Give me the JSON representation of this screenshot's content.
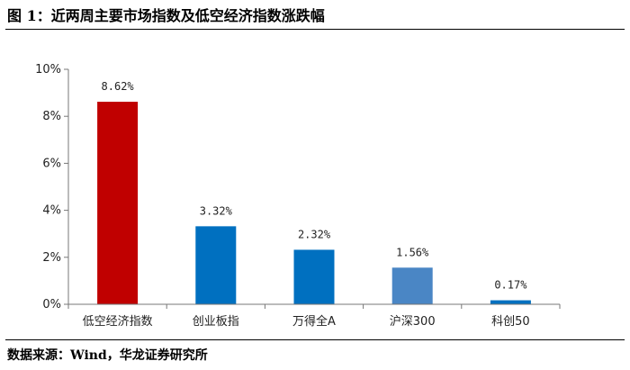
{
  "title": "图 1：近两周主要市场指数及低空经济指数涨跌幅",
  "source": "数据来源：Wind，华龙证券研究所",
  "chart_data": {
    "type": "bar",
    "title": "",
    "xlabel": "",
    "ylabel": "",
    "categories": [
      "低空经济指数",
      "创业板指",
      "万得全A",
      "沪深300",
      "科创50"
    ],
    "values": [
      8.62,
      3.32,
      2.32,
      1.56,
      0.17
    ],
    "data_labels": [
      "8.62%",
      "3.32%",
      "2.32%",
      "1.56%",
      "0.17%"
    ],
    "bar_colors": [
      "#C00000",
      "#0070C0",
      "#0070C0",
      "#4A86C5",
      "#0070C0"
    ],
    "ylim": [
      0,
      10
    ],
    "y_ticks": [
      0,
      2,
      4,
      6,
      8,
      10
    ],
    "y_tick_labels": [
      "0%",
      "2%",
      "4%",
      "6%",
      "8%",
      "10%"
    ],
    "grid": false,
    "legend": "none"
  }
}
